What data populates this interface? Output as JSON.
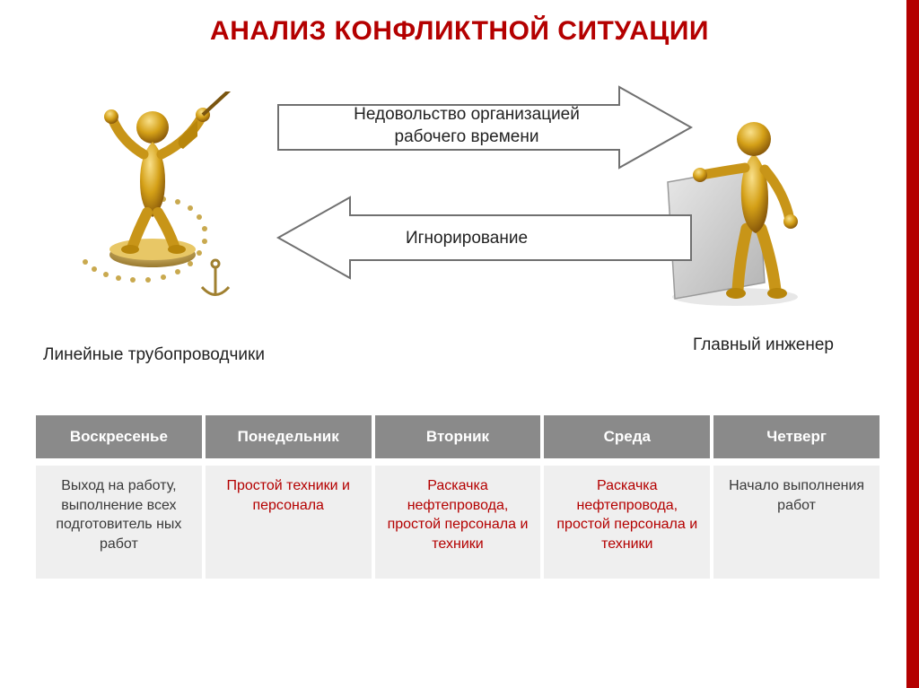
{
  "title": {
    "text": "АНАЛИЗ КОНФЛИКТНОЙ СИТУАЦИИ",
    "color": "#b40000",
    "fontsize": 30
  },
  "accent_bar_color": "#b40000",
  "diagram": {
    "top_arrow_text": "Недовольство организацией рабочего времени",
    "bottom_arrow_text": "Игнорирование",
    "arrow_stroke": "#707070",
    "arrow_fill": "#ffffff",
    "arrow_stroke_width": 2,
    "left_caption": "Линейные трубопроводчики",
    "right_caption": "Главный инженер",
    "figure_gold": "#d4a017",
    "figure_highlight": "#f5d76e",
    "figure_shadow": "#a07010",
    "board_fill": "#cfcfcf",
    "board_stroke": "#9a9a9a"
  },
  "table": {
    "header_bg": "#8a8a8a",
    "header_color": "#ffffff",
    "row_bg": "#efefef",
    "highlight_text_color": "#b40000",
    "normal_text_color": "#3a3a3a",
    "columns": [
      "Воскресенье",
      "Понедельник",
      "Вторник",
      "Среда",
      "Четверг"
    ],
    "cells": [
      {
        "text": "Выход на работу, выполнение всех подготовитель ных работ",
        "highlight": false
      },
      {
        "text": "Простой техники и персонала",
        "highlight": true
      },
      {
        "text": "Раскачка нефтепровода, простой персонала и техники",
        "highlight": true
      },
      {
        "text": "Раскачка нефтепровода, простой персонала и техники",
        "highlight": true
      },
      {
        "text": "Начало выполнения работ",
        "highlight": false
      }
    ]
  }
}
